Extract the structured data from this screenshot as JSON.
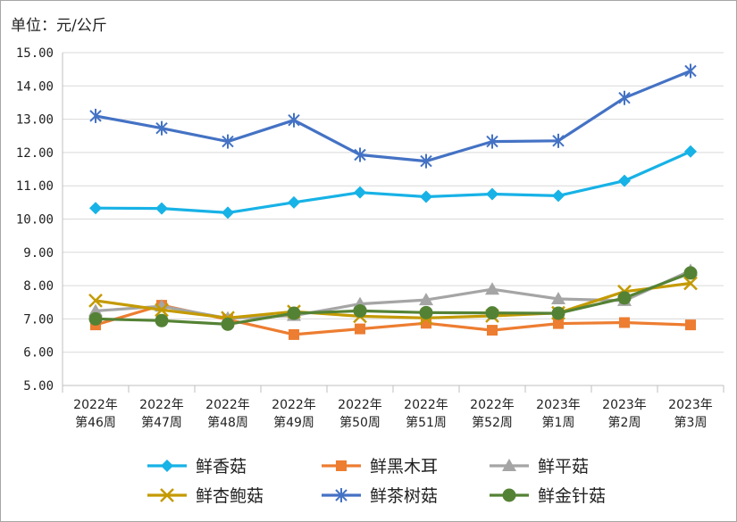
{
  "unit_label": "单位：元/公斤",
  "chart_data": {
    "type": "line",
    "title": "",
    "ylabel": "单位：元/公斤",
    "xlabel": "",
    "ylim": [
      5.0,
      15.0
    ],
    "ytick_step": 1.0,
    "ytick_labels": [
      "5.00",
      "6.00",
      "7.00",
      "8.00",
      "9.00",
      "10.00",
      "11.00",
      "12.00",
      "13.00",
      "14.00",
      "15.00"
    ],
    "categories": [
      [
        "2022年",
        "第46周"
      ],
      [
        "2022年",
        "第47周"
      ],
      [
        "2022年",
        "第48周"
      ],
      [
        "2022年",
        "第49周"
      ],
      [
        "2022年",
        "第50周"
      ],
      [
        "2022年",
        "第51周"
      ],
      [
        "2022年",
        "第52周"
      ],
      [
        "2023年",
        "第1周"
      ],
      [
        "2023年",
        "第2周"
      ],
      [
        "2023年",
        "第3周"
      ]
    ],
    "grid": true,
    "legend_position": "bottom",
    "series": [
      {
        "name": "鲜香菇",
        "color": "#17b2e6",
        "marker": "diamond",
        "values": [
          10.33,
          10.32,
          10.19,
          10.5,
          10.8,
          10.67,
          10.75,
          10.7,
          11.15,
          12.03
        ]
      },
      {
        "name": "鲜黑木耳",
        "color": "#ed7d31",
        "marker": "square",
        "values": [
          6.82,
          7.41,
          6.98,
          6.53,
          6.7,
          6.87,
          6.66,
          6.86,
          6.89,
          6.82
        ]
      },
      {
        "name": "鲜平菇",
        "color": "#a5a5a5",
        "marker": "triangle",
        "values": [
          7.24,
          7.38,
          7.02,
          7.1,
          7.45,
          7.57,
          7.89,
          7.6,
          7.55,
          8.45
        ]
      },
      {
        "name": "鲜杏鲍菇",
        "color": "#c49a00",
        "marker": "x",
        "values": [
          7.55,
          7.27,
          7.03,
          7.22,
          7.08,
          7.03,
          7.09,
          7.18,
          7.82,
          8.07
        ]
      },
      {
        "name": "鲜茶树菇",
        "color": "#4472c4",
        "marker": "asterisk",
        "values": [
          13.1,
          12.73,
          12.33,
          12.97,
          11.93,
          11.74,
          12.33,
          12.35,
          13.64,
          14.45
        ]
      },
      {
        "name": "鲜金针菇",
        "color": "#548235",
        "marker": "circle",
        "values": [
          7.0,
          6.95,
          6.84,
          7.17,
          7.24,
          7.19,
          7.18,
          7.17,
          7.63,
          8.38
        ]
      }
    ]
  }
}
